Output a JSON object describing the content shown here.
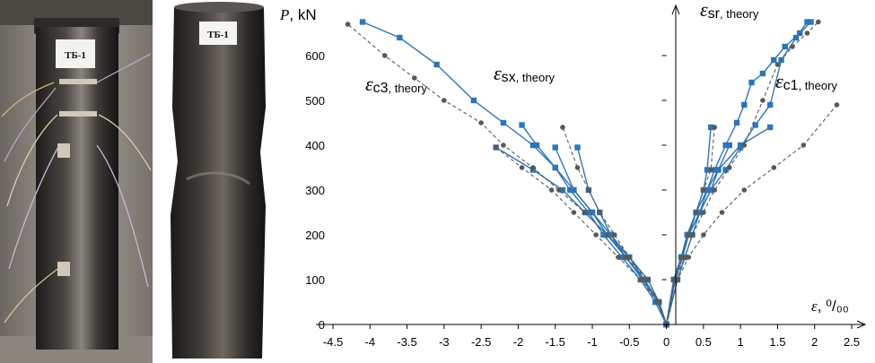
{
  "photos": {
    "left_label": "ТБ-1",
    "right_label": "ТБ-1"
  },
  "chart_data": {
    "type": "line",
    "title": "",
    "xlabel": "ε, ⁰/₀₀",
    "ylabel": "P, kN",
    "xlim": [
      -4.5,
      2.5
    ],
    "ylim": [
      0,
      700
    ],
    "xticks": [
      -4.5,
      -4,
      -3.5,
      -3,
      -2.5,
      -2,
      -1.5,
      -1,
      -0.5,
      0,
      0.5,
      1,
      1.5,
      2,
      2.5
    ],
    "yticks": [
      0,
      100,
      200,
      300,
      400,
      500,
      600
    ],
    "grid": false,
    "colors": {
      "experiment": "#2e75b6",
      "theory": "#595959"
    },
    "y_axis_title": {
      "symbol": "P",
      "unit": ", kN"
    },
    "x_axis_title": {
      "symbol": "ε",
      "unit": ", ⁰/₀₀"
    },
    "annotations": [
      {
        "symbol": "ε",
        "sub": "c3",
        "suffix": ", theory"
      },
      {
        "symbol": "ε",
        "sub": "sx",
        "suffix": ", theory"
      },
      {
        "symbol": "ε",
        "sub": "sr",
        "suffix": ", theory"
      },
      {
        "symbol": "ε",
        "sub": "c1",
        "suffix": ", theory"
      }
    ],
    "series": [
      {
        "kind": "experiment",
        "marker": "square",
        "x": [
          0,
          -0.1,
          -0.25,
          -0.5,
          -0.75,
          -1.0,
          -1.25,
          -1.5,
          -1.8,
          -2.2,
          -2.6,
          -3.1,
          -3.6,
          -4.1
        ],
        "y": [
          0,
          50,
          100,
          150,
          200,
          250,
          300,
          350,
          400,
          450,
          500,
          580,
          640,
          675
        ]
      },
      {
        "kind": "experiment",
        "marker": "square",
        "x": [
          0,
          -0.15,
          -0.35,
          -0.6,
          -0.85,
          -1.05,
          -1.3,
          -1.5,
          -1.75,
          -1.95
        ],
        "y": [
          0,
          50,
          100,
          150,
          200,
          250,
          300,
          350,
          400,
          445
        ]
      },
      {
        "kind": "experiment",
        "marker": "square",
        "x": [
          0,
          -0.1,
          -0.3,
          -0.55,
          -0.8,
          -1.0,
          -1.25,
          -1.5
        ],
        "y": [
          0,
          50,
          100,
          150,
          200,
          250,
          300,
          395
        ]
      },
      {
        "kind": "experiment",
        "marker": "square",
        "x": [
          0,
          -0.12,
          -0.32,
          -0.55,
          -0.75,
          -0.9,
          -1.05,
          -1.2
        ],
        "y": [
          0,
          50,
          100,
          150,
          200,
          250,
          300,
          395
        ]
      },
      {
        "kind": "experiment",
        "marker": "square",
        "x": [
          0,
          -0.1,
          -0.3,
          -0.5,
          -0.8,
          -1.1,
          -1.4,
          -1.8,
          -2.3
        ],
        "y": [
          0,
          50,
          100,
          150,
          200,
          250,
          300,
          345,
          395
        ]
      },
      {
        "kind": "experiment",
        "marker": "square",
        "x": [
          0,
          0.1,
          0.2,
          0.3,
          0.45,
          0.6,
          0.8,
          1.0,
          1.2,
          1.4,
          1.55,
          1.75,
          1.9
        ],
        "y": [
          0,
          100,
          150,
          200,
          250,
          300,
          345,
          395,
          445,
          490,
          590,
          640,
          675
        ]
      },
      {
        "kind": "experiment",
        "marker": "square",
        "x": [
          0,
          0.1,
          0.2,
          0.28,
          0.4,
          0.5,
          0.55,
          0.6
        ],
        "y": [
          0,
          100,
          150,
          200,
          250,
          300,
          345,
          440
        ]
      },
      {
        "kind": "experiment",
        "marker": "square",
        "x": [
          0,
          0.12,
          0.22,
          0.3,
          0.45,
          0.6,
          0.7,
          0.85
        ],
        "y": [
          0,
          100,
          150,
          200,
          250,
          300,
          345,
          400
        ]
      },
      {
        "kind": "experiment",
        "marker": "square",
        "x": [
          0,
          0.1,
          0.2,
          0.3,
          0.4,
          0.55,
          0.7,
          1.0,
          1.4
        ],
        "y": [
          0,
          100,
          150,
          200,
          250,
          300,
          345,
          400,
          440
        ]
      },
      {
        "kind": "experiment",
        "marker": "square",
        "x": [
          0,
          0.15,
          0.25,
          0.35,
          0.45,
          0.55,
          0.65,
          0.8,
          0.95,
          1.05,
          1.15,
          1.3,
          1.45,
          1.6,
          1.8,
          1.95
        ],
        "y": [
          0,
          100,
          150,
          200,
          250,
          300,
          345,
          400,
          450,
          490,
          540,
          560,
          590,
          620,
          650,
          675
        ]
      },
      {
        "kind": "theory",
        "marker": "circle",
        "x": [
          0,
          -0.1,
          -0.25,
          -0.55,
          -0.8,
          -1.1,
          -1.45,
          -1.8,
          -2.2,
          -2.5,
          -3.0,
          -3.4,
          -3.8,
          -4.3
        ],
        "y": [
          0,
          50,
          100,
          150,
          200,
          250,
          300,
          350,
          400,
          450,
          500,
          550,
          600,
          670
        ]
      },
      {
        "kind": "theory",
        "marker": "circle",
        "x": [
          0,
          -0.1,
          -0.3,
          -0.5,
          -0.7,
          -0.9,
          -1.05,
          -1.2,
          -1.4
        ],
        "y": [
          0,
          50,
          100,
          150,
          200,
          250,
          300,
          350,
          440
        ]
      },
      {
        "kind": "theory",
        "marker": "circle",
        "x": [
          0,
          -0.12,
          -0.35,
          -0.65,
          -0.95,
          -1.25,
          -1.55,
          -1.95,
          -2.3
        ],
        "y": [
          0,
          50,
          100,
          150,
          200,
          250,
          300,
          350,
          395
        ]
      },
      {
        "kind": "theory",
        "marker": "circle",
        "x": [
          0,
          0.1,
          0.2,
          0.3,
          0.4,
          0.5,
          0.6,
          0.65
        ],
        "y": [
          0,
          100,
          150,
          200,
          250,
          300,
          345,
          440
        ]
      },
      {
        "kind": "theory",
        "marker": "circle",
        "x": [
          0,
          0.15,
          0.3,
          0.5,
          0.75,
          1.05,
          1.45,
          1.85,
          2.3
        ],
        "y": [
          0,
          100,
          150,
          200,
          250,
          300,
          350,
          400,
          490
        ]
      },
      {
        "kind": "theory",
        "marker": "circle",
        "x": [
          0,
          0.12,
          0.25,
          0.35,
          0.5,
          0.65,
          0.85,
          1.05,
          1.3,
          1.5,
          1.7,
          1.9,
          2.05
        ],
        "y": [
          0,
          100,
          150,
          200,
          250,
          300,
          350,
          400,
          500,
          580,
          620,
          650,
          675
        ]
      }
    ]
  }
}
